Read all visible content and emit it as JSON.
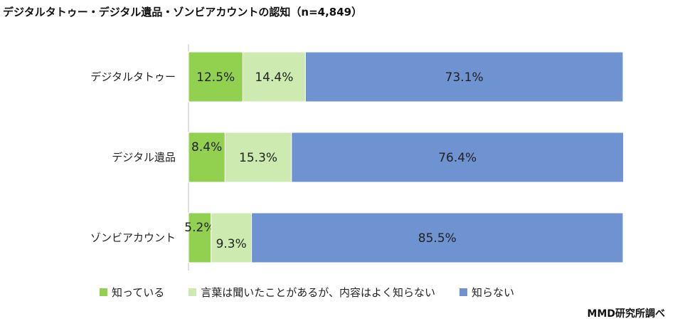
{
  "chart_data": {
    "type": "bar",
    "orientation": "horizontal",
    "stacked": true,
    "title": "デジタルタトゥー・デジタル遺品・ゾンビアカウントの認知（n=4,849）",
    "categories": [
      "デジタルタトゥー",
      "デジタル遺品",
      "ゾンビアカウント"
    ],
    "series": [
      {
        "name": "知っている",
        "color": "#92d050",
        "values": [
          12.5,
          8.4,
          5.2
        ],
        "labels": [
          "12.5%",
          "8.4%",
          "5.2%"
        ]
      },
      {
        "name": "言葉は聞いたことがあるが、内容はよく知らない",
        "color": "#cdeab0",
        "values": [
          14.4,
          15.3,
          9.3
        ],
        "labels": [
          "14.4%",
          "15.3%",
          "9.3%"
        ]
      },
      {
        "name": "知らない",
        "color": "#6f93d1",
        "values": [
          73.1,
          76.4,
          85.5
        ],
        "labels": [
          "73.1%",
          "76.4%",
          "85.5%"
        ]
      }
    ],
    "xlim": [
      0,
      100
    ],
    "grid": false,
    "legend_position": "bottom"
  },
  "source_note": "MMD研究所調べ"
}
